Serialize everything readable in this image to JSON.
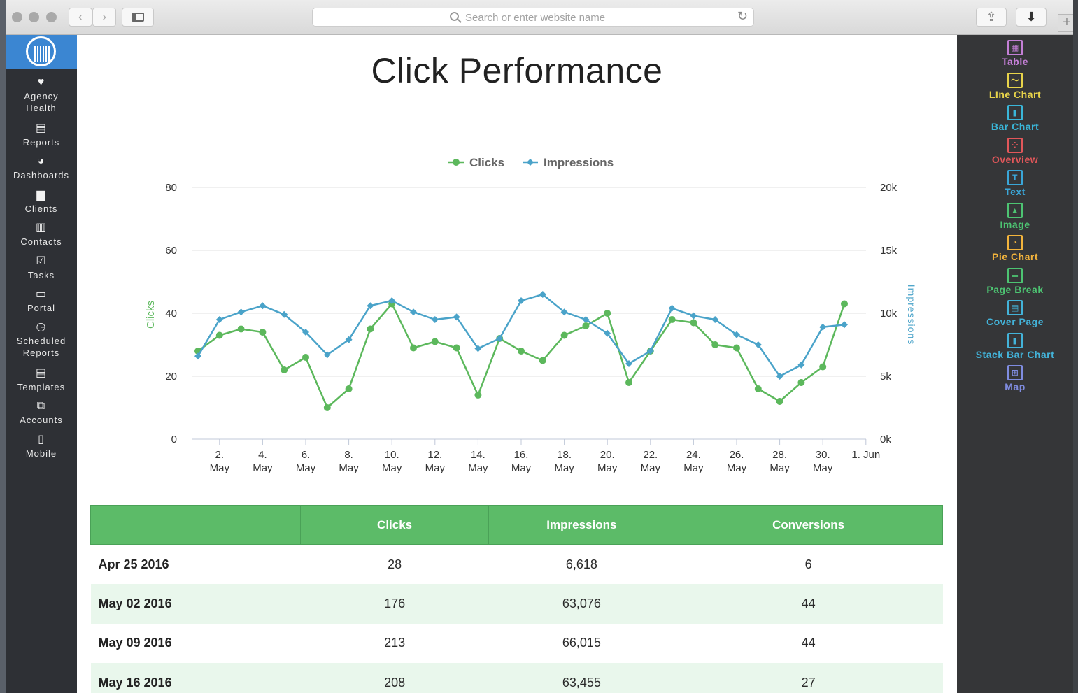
{
  "browser": {
    "url_placeholder": "Search or enter website name",
    "icons": {
      "back": "chevron-left-icon",
      "forward": "chevron-right-icon",
      "sidebar": "sidebar-toggle-icon",
      "search": "search-icon",
      "reload": "reload-icon",
      "share": "share-icon",
      "download": "download-icon",
      "new_tab": "plus-icon"
    }
  },
  "left_nav": [
    {
      "label": "Agency\nHealth",
      "icon": "heart-icon"
    },
    {
      "label": "Reports",
      "icon": "report-icon"
    },
    {
      "label": "Dashboards",
      "icon": "pie-icon"
    },
    {
      "label": "Clients",
      "icon": "briefcase-icon"
    },
    {
      "label": "Contacts",
      "icon": "address-book-icon"
    },
    {
      "label": "Tasks",
      "icon": "checkbox-icon"
    },
    {
      "label": "Portal",
      "icon": "portal-icon"
    },
    {
      "label": "Scheduled\nReports",
      "icon": "clock-icon"
    },
    {
      "label": "Templates",
      "icon": "document-icon"
    },
    {
      "label": "Accounts",
      "icon": "accounts-icon"
    },
    {
      "label": "Mobile",
      "icon": "mobile-icon"
    }
  ],
  "page": {
    "title": "Click Performance"
  },
  "chart_data": {
    "type": "line",
    "title": "",
    "legend": [
      "Clicks",
      "Impressions"
    ],
    "legend_position": "top-center",
    "x_labels": [
      {
        "line1": "2.",
        "line2": "May"
      },
      {
        "line1": "4.",
        "line2": "May"
      },
      {
        "line1": "6.",
        "line2": "May"
      },
      {
        "line1": "8.",
        "line2": "May"
      },
      {
        "line1": "10.",
        "line2": "May"
      },
      {
        "line1": "12.",
        "line2": "May"
      },
      {
        "line1": "14.",
        "line2": "May"
      },
      {
        "line1": "16.",
        "line2": "May"
      },
      {
        "line1": "18.",
        "line2": "May"
      },
      {
        "line1": "20.",
        "line2": "May"
      },
      {
        "line1": "22.",
        "line2": "May"
      },
      {
        "line1": "24.",
        "line2": "May"
      },
      {
        "line1": "26.",
        "line2": "May"
      },
      {
        "line1": "28.",
        "line2": "May"
      },
      {
        "line1": "30.",
        "line2": "May"
      },
      {
        "line1": "1. Jun",
        "line2": ""
      }
    ],
    "y_left": {
      "label": "Clicks",
      "ticks": [
        "0",
        "20",
        "40",
        "60",
        "80"
      ],
      "range": [
        0,
        80
      ]
    },
    "y_right": {
      "label": "Impressions",
      "ticks": [
        "0k",
        "5k",
        "10k",
        "15k",
        "20k"
      ],
      "range": [
        0,
        20000
      ]
    },
    "x": [
      "2016-05-01",
      "2016-05-02",
      "2016-05-03",
      "2016-05-04",
      "2016-05-05",
      "2016-05-06",
      "2016-05-07",
      "2016-05-08",
      "2016-05-09",
      "2016-05-10",
      "2016-05-11",
      "2016-05-12",
      "2016-05-13",
      "2016-05-14",
      "2016-05-15",
      "2016-05-16",
      "2016-05-17",
      "2016-05-18",
      "2016-05-19",
      "2016-05-20",
      "2016-05-21",
      "2016-05-22",
      "2016-05-23",
      "2016-05-24",
      "2016-05-25",
      "2016-05-26",
      "2016-05-27",
      "2016-05-28",
      "2016-05-29",
      "2016-05-30",
      "2016-05-31"
    ],
    "series": [
      {
        "name": "Clicks",
        "axis": "left",
        "color": "#5cb85c",
        "marker": "circle",
        "values": [
          28,
          33,
          35,
          34,
          22,
          26,
          10,
          16,
          35,
          43,
          29,
          31,
          29,
          14,
          32,
          28,
          25,
          33,
          36,
          40,
          18,
          28,
          38,
          37,
          30,
          29,
          16,
          12,
          18,
          23,
          43
        ]
      },
      {
        "name": "Impressions",
        "axis": "right",
        "color": "#4aa3c9",
        "marker": "diamond",
        "values": [
          6600,
          9500,
          10100,
          10600,
          9900,
          8500,
          6700,
          7900,
          10600,
          11000,
          10100,
          9500,
          9700,
          7200,
          8000,
          11000,
          11500,
          10100,
          9500,
          8400,
          6000,
          7000,
          10400,
          9800,
          9500,
          8300,
          7500,
          5000,
          5900,
          8900,
          9100
        ]
      }
    ],
    "grid": true
  },
  "table": {
    "headers": [
      "",
      "Clicks",
      "Impressions",
      "Conversions"
    ],
    "rows": [
      {
        "date": "Apr 25 2016",
        "clicks": "28",
        "impressions": "6,618",
        "conversions": "6"
      },
      {
        "date": "May 02 2016",
        "clicks": "176",
        "impressions": "63,076",
        "conversions": "44"
      },
      {
        "date": "May 09 2016",
        "clicks": "213",
        "impressions": "66,015",
        "conversions": "44"
      },
      {
        "date": "May 16 2016",
        "clicks": "208",
        "impressions": "63,455",
        "conversions": "27"
      }
    ]
  },
  "widgets": [
    {
      "label": "Table",
      "icon": "table-icon",
      "color": "#c47fd6",
      "glyph": "▦"
    },
    {
      "label": "LIne Chart",
      "icon": "line-chart-icon",
      "color": "#e8d44a",
      "glyph": "〜"
    },
    {
      "label": "Bar Chart",
      "icon": "bar-chart-icon",
      "color": "#3ab6d8",
      "glyph": "▮"
    },
    {
      "label": "Overview",
      "icon": "overview-icon",
      "color": "#e2575a",
      "glyph": "⁘"
    },
    {
      "label": "Text",
      "icon": "text-icon",
      "color": "#3aa6d8",
      "glyph": "T"
    },
    {
      "label": "Image",
      "icon": "image-icon",
      "color": "#4dc472",
      "glyph": "▲"
    },
    {
      "label": "Pie Chart",
      "icon": "pie-chart-icon",
      "color": "#f3b43c",
      "glyph": "◔"
    },
    {
      "label": "Page Break",
      "icon": "page-break-icon",
      "color": "#4dc472",
      "glyph": "═"
    },
    {
      "label": "Cover Page",
      "icon": "cover-page-icon",
      "color": "#43b3d9",
      "glyph": "▤"
    },
    {
      "label": "Stack Bar Chart",
      "icon": "stack-bar-chart-icon",
      "color": "#43b3d9",
      "glyph": "▮"
    },
    {
      "label": "Map",
      "icon": "map-icon",
      "color": "#7f8ce0",
      "glyph": "⊞"
    }
  ]
}
